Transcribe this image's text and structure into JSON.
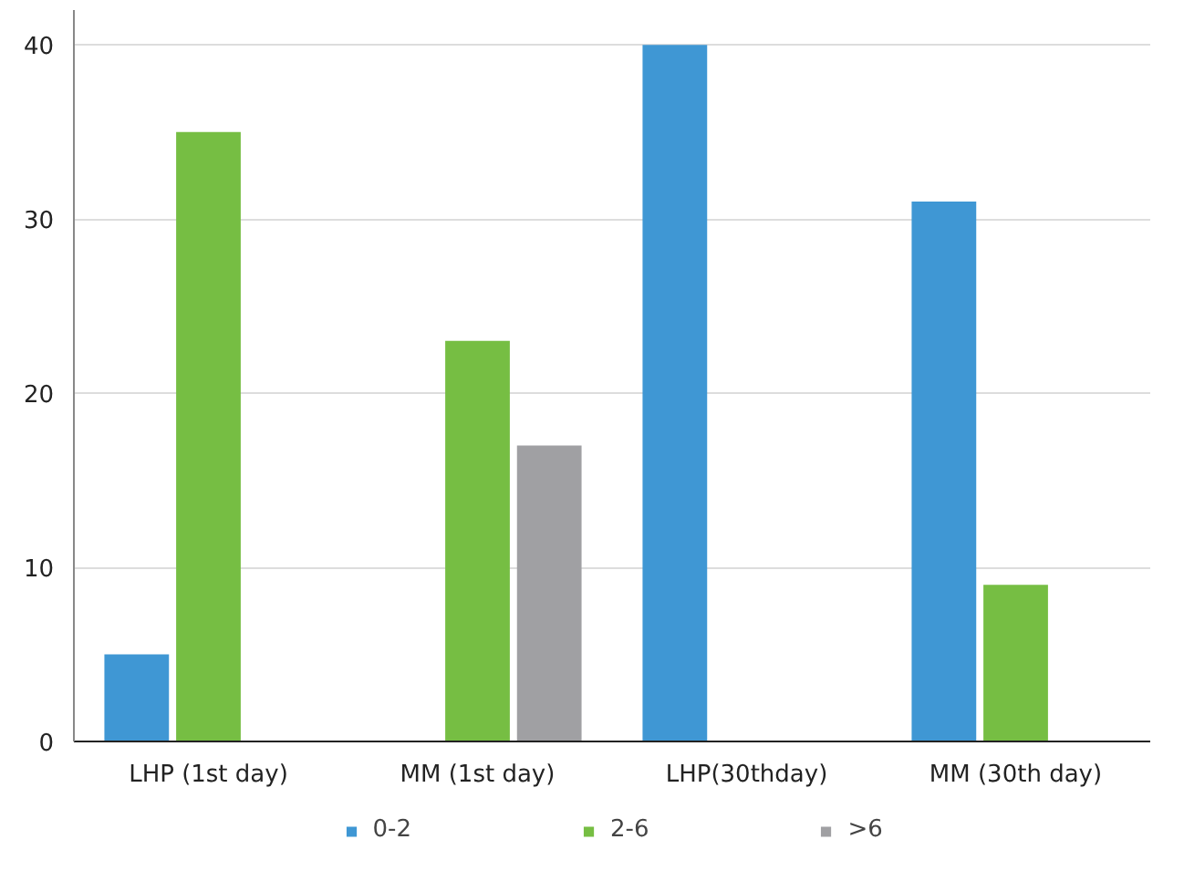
{
  "chart_data": {
    "type": "bar",
    "categories": [
      "LHP (1st day)",
      "MM (1st day)",
      "LHP(30thday)",
      "MM (30th day)"
    ],
    "series": [
      {
        "name": "0-2",
        "color": "#3f97d4",
        "values": [
          5,
          0,
          40,
          31
        ]
      },
      {
        "name": "2-6",
        "color": "#76be43",
        "values": [
          35,
          23,
          0,
          9
        ]
      },
      {
        "name": ">6",
        "color": "#a0a0a3",
        "values": [
          0,
          17,
          0,
          0
        ]
      }
    ],
    "ylim": [
      0,
      42
    ],
    "yticks": [
      0,
      10,
      20,
      30,
      40
    ],
    "grid": "y",
    "legend": "bottom"
  }
}
